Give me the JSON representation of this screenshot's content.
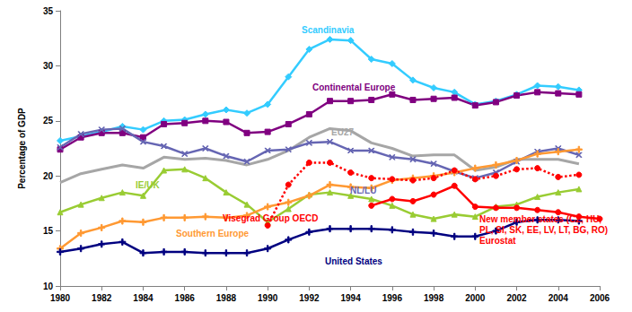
{
  "chart_data": {
    "type": "line",
    "y_label": "Percentage of GDP",
    "x": [
      1980,
      1981,
      1982,
      1983,
      1984,
      1985,
      1986,
      1987,
      1988,
      1989,
      1990,
      1991,
      1992,
      1993,
      1994,
      1995,
      1996,
      1997,
      1998,
      1999,
      2000,
      2001,
      2002,
      2003,
      2004,
      2005,
      2006
    ],
    "xlim": [
      1980,
      2006
    ],
    "xticks": [
      1980,
      1982,
      1984,
      1986,
      1988,
      1990,
      1992,
      1994,
      1996,
      1998,
      2000,
      2002,
      2004,
      2006
    ],
    "ylim": [
      10,
      35
    ],
    "yticks": [
      10,
      15,
      20,
      25,
      30,
      35
    ],
    "grid": false,
    "series": [
      {
        "name": "Scandinavia",
        "color": "#33ccff",
        "marker": "diamond",
        "line_style": "solid",
        "values": [
          23.2,
          23.6,
          24.0,
          24.5,
          24.2,
          25.0,
          25.1,
          25.6,
          26.0,
          25.7,
          26.5,
          29.0,
          31.5,
          32.4,
          32.3,
          30.6,
          30.2,
          28.7,
          28.0,
          27.6,
          26.5,
          26.8,
          27.4,
          28.2,
          28.1,
          27.8,
          null
        ]
      },
      {
        "name": "Continental Europe",
        "color": "#800080",
        "marker": "square",
        "line_style": "solid",
        "values": [
          22.4,
          23.5,
          23.9,
          23.9,
          23.5,
          24.7,
          24.8,
          25.0,
          24.9,
          23.9,
          24.0,
          24.7,
          25.6,
          26.8,
          26.8,
          26.9,
          27.4,
          26.9,
          27.0,
          27.1,
          26.4,
          26.7,
          27.3,
          27.6,
          27.5,
          27.4,
          null
        ]
      },
      {
        "name": "EU27",
        "color": "#a6a6a6",
        "marker": "none",
        "line_style": "solid",
        "values": [
          19.4,
          20.2,
          20.6,
          21.0,
          20.7,
          21.7,
          21.5,
          21.6,
          21.4,
          21.0,
          21.5,
          22.3,
          23.5,
          24.3,
          24.1,
          23.0,
          22.5,
          21.8,
          21.9,
          21.9,
          20.5,
          20.8,
          21.5,
          21.5,
          21.5,
          21.1,
          null
        ]
      },
      {
        "name": "NL/LU",
        "color": "#6666b3",
        "marker": "x",
        "line_style": "solid",
        "values": [
          22.6,
          23.8,
          24.2,
          24.3,
          23.1,
          22.7,
          22.0,
          22.5,
          21.8,
          21.3,
          22.3,
          22.4,
          23.0,
          23.1,
          22.3,
          22.3,
          21.7,
          21.5,
          21.1,
          20.4,
          19.8,
          20.3,
          21.3,
          22.2,
          22.5,
          21.9,
          null
        ]
      },
      {
        "name": "IE/UK",
        "color": "#99cc33",
        "marker": "triangle",
        "line_style": "solid",
        "values": [
          16.7,
          17.4,
          18.0,
          18.5,
          18.2,
          20.5,
          20.6,
          19.8,
          18.5,
          17.4,
          15.8,
          17.0,
          18.3,
          18.5,
          18.2,
          17.9,
          17.3,
          16.5,
          16.1,
          16.5,
          16.3,
          17.2,
          17.4,
          18.1,
          18.5,
          18.8,
          null
        ]
      },
      {
        "name": "Southern Europe",
        "color": "#ff9933",
        "marker": "plus",
        "line_style": "solid",
        "values": [
          13.4,
          14.8,
          15.3,
          15.9,
          15.8,
          16.2,
          16.2,
          16.3,
          16.2,
          16.4,
          17.2,
          17.6,
          18.2,
          19.2,
          19.0,
          18.9,
          19.6,
          19.8,
          20.0,
          20.3,
          20.7,
          21.0,
          21.4,
          22.0,
          22.2,
          22.4,
          null
        ]
      },
      {
        "name": "United States",
        "color": "#000080",
        "marker": "plus",
        "line_style": "solid",
        "values": [
          13.1,
          13.4,
          13.8,
          14.0,
          13.0,
          13.1,
          13.1,
          13.0,
          13.0,
          13.0,
          13.4,
          14.2,
          14.9,
          15.2,
          15.2,
          15.2,
          15.1,
          14.9,
          14.8,
          14.5,
          14.5,
          15.0,
          15.8,
          16.0,
          16.0,
          15.9,
          null
        ]
      },
      {
        "name": "Visegrad Group OECD",
        "color": "#ff0000",
        "marker": "circle",
        "line_style": "dotted",
        "values": [
          null,
          null,
          null,
          null,
          null,
          null,
          null,
          null,
          null,
          null,
          15.5,
          19.2,
          21.2,
          21.2,
          20.3,
          19.8,
          19.7,
          19.6,
          19.8,
          20.5,
          19.7,
          20.0,
          20.6,
          20.7,
          19.9,
          20.1,
          null
        ]
      },
      {
        "name": "New member states (CZ, HU, PL, SI, SK, EE, LV, LT, BG, RO) Eurostat",
        "color": "#ff0000",
        "marker": "circle",
        "line_style": "solid",
        "values": [
          null,
          null,
          null,
          null,
          null,
          null,
          null,
          null,
          null,
          null,
          null,
          null,
          null,
          null,
          null,
          17.3,
          17.9,
          17.7,
          18.3,
          19.1,
          17.2,
          17.1,
          17.1,
          16.9,
          16.7,
          16.3,
          16.1
        ]
      }
    ]
  }
}
